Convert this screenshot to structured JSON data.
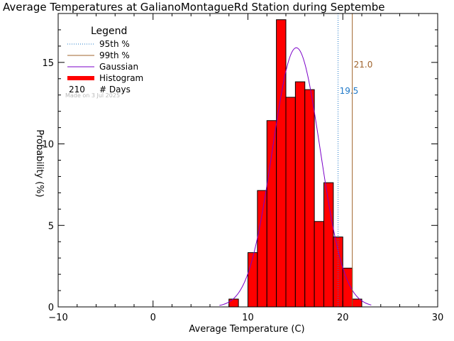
{
  "chart_data": {
    "type": "bar",
    "title": "Average Temperatures at GalianoMontagueRd Station during Septembe",
    "xlabel": "Average Temperature (C)",
    "ylabel": "Probability (%)",
    "xlim": [
      -10,
      30
    ],
    "ylim": [
      0,
      18
    ],
    "x_ticks": [
      -10,
      0,
      10,
      20,
      30
    ],
    "y_ticks": [
      0,
      5,
      10,
      15
    ],
    "bin_width": 1,
    "histogram": {
      "bin_starts": [
        8,
        9,
        10,
        11,
        12,
        13,
        14,
        15,
        16,
        17,
        18,
        19,
        20,
        21
      ],
      "values": [
        0.48,
        0,
        3.33,
        7.14,
        11.43,
        17.62,
        12.86,
        13.81,
        13.33,
        5.24,
        7.62,
        4.29,
        2.38,
        0.48
      ],
      "color": "#ff0000"
    },
    "gaussian": {
      "mean": 15.1,
      "sigma": 2.52,
      "peak": 15.9,
      "x_range": [
        7,
        23
      ],
      "color": "#7b00c8"
    },
    "percentiles": [
      {
        "label": "95th %",
        "value": 19.5,
        "value_label": "19.5",
        "color": "#1e78c8",
        "style": "dotted"
      },
      {
        "label": "99th %",
        "value": 21.0,
        "value_label": "21.0",
        "color": "#a0642d",
        "style": "solid"
      }
    ],
    "legend": {
      "title": "Legend",
      "position": "top-left",
      "entries": [
        {
          "label": "95th %",
          "kind": "dotted-line",
          "color": "#1e78c8"
        },
        {
          "label": "99th %",
          "kind": "line",
          "color": "#a0642d"
        },
        {
          "label": "Gaussian",
          "kind": "line",
          "color": "#7b00c8"
        },
        {
          "label": "Histogram",
          "kind": "thick-line",
          "color": "#ff0000"
        },
        {
          "label": "# Days",
          "kind": "count",
          "count": "210"
        }
      ]
    },
    "annotation": "Made on 3 Jul 2025"
  }
}
